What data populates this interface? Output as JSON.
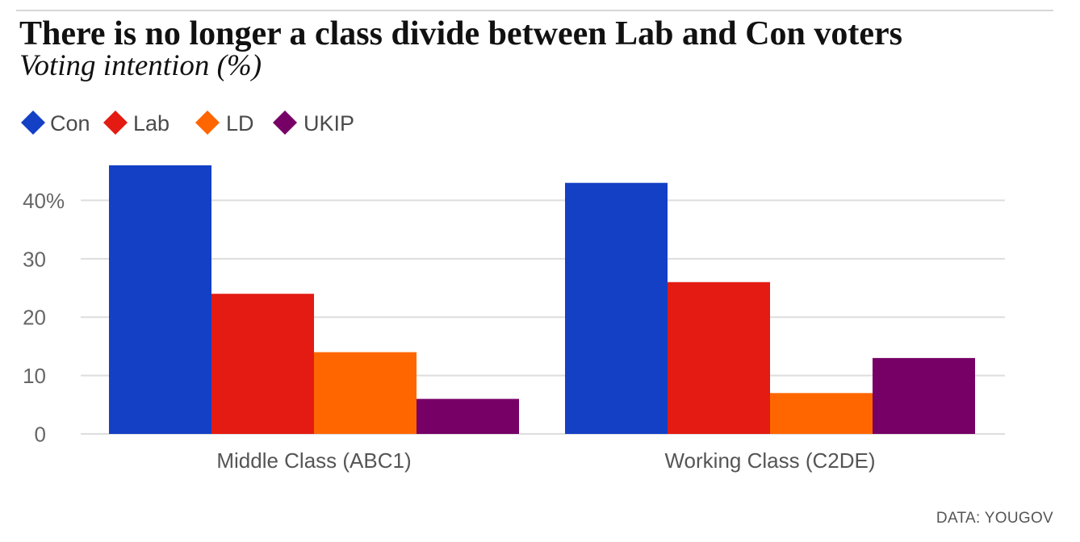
{
  "chart_data": {
    "type": "bar",
    "title": "There is no longer a class divide between Lab and Con voters",
    "subtitle": "Voting intention (%)",
    "categories": [
      "Middle Class (ABC1)",
      "Working Class (C2DE)"
    ],
    "series": [
      {
        "name": "Con",
        "color": "#1440c6",
        "values": [
          46,
          43
        ]
      },
      {
        "name": "Lab",
        "color": "#e31b12",
        "values": [
          24,
          26
        ]
      },
      {
        "name": "LD",
        "color": "#ff6600",
        "values": [
          14,
          7
        ]
      },
      {
        "name": "UKIP",
        "color": "#760066",
        "values": [
          6,
          13
        ]
      }
    ],
    "yticks": [
      0,
      10,
      20,
      30,
      40
    ],
    "ytick_labels": [
      "0",
      "10",
      "20",
      "30",
      "40%"
    ],
    "ylim": [
      0,
      46
    ],
    "grid": true,
    "legend_position": "top-left",
    "source": "DATA: YOUGOV"
  }
}
